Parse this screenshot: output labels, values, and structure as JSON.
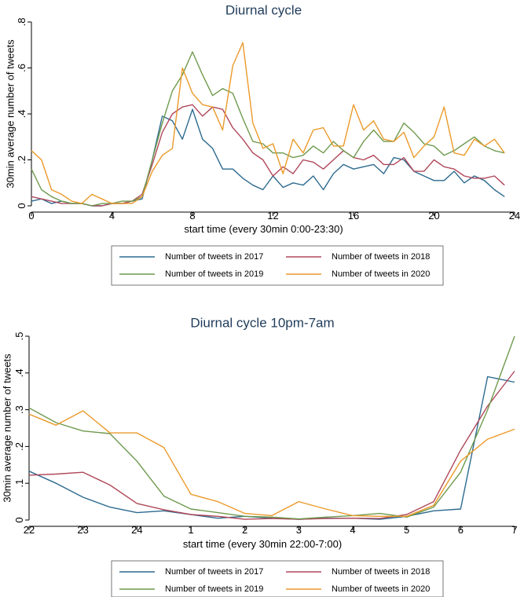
{
  "chart_data": [
    {
      "type": "line",
      "title": "Diurnal cycle",
      "xlabel": "start time (every 30min 0:00-23:30)",
      "ylabel": "30min average number of tweets",
      "xlim": [
        0,
        24
      ],
      "ylim": [
        0,
        0.8
      ],
      "x_ticks": [
        0,
        4,
        8,
        12,
        16,
        20,
        24
      ],
      "x_tick_labels": [
        "0",
        "4",
        "8",
        "12",
        "16",
        "20",
        "24"
      ],
      "y_ticks": [
        0,
        0.2,
        0.4,
        0.6,
        0.8
      ],
      "y_tick_labels": [
        "0",
        ".2",
        ".4",
        ".6",
        ".8"
      ],
      "grid": false,
      "legend_position": "bottom",
      "x": [
        0,
        0.5,
        1,
        1.5,
        2,
        2.5,
        3,
        3.5,
        4,
        4.5,
        5,
        5.5,
        6,
        6.5,
        7,
        7.5,
        8,
        8.5,
        9,
        9.5,
        10,
        10.5,
        11,
        11.5,
        12,
        12.5,
        13,
        13.5,
        14,
        14.5,
        15,
        15.5,
        16,
        16.5,
        17,
        17.5,
        18,
        18.5,
        19,
        19.5,
        20,
        20.5,
        21,
        21.5,
        22,
        22.5,
        23,
        23.5
      ],
      "series": [
        {
          "name": "Number of tweets in 2017",
          "color": "#2d6a8f",
          "values": [
            0.02,
            0.03,
            0.01,
            0.02,
            0.01,
            0.01,
            0.0,
            0.0,
            0.01,
            0.01,
            0.02,
            0.03,
            0.2,
            0.39,
            0.37,
            0.29,
            0.42,
            0.29,
            0.25,
            0.16,
            0.16,
            0.12,
            0.09,
            0.07,
            0.13,
            0.08,
            0.1,
            0.09,
            0.13,
            0.07,
            0.14,
            0.18,
            0.16,
            0.17,
            0.18,
            0.14,
            0.21,
            0.2,
            0.15,
            0.13,
            0.11,
            0.11,
            0.15,
            0.1,
            0.13,
            0.11,
            0.07,
            0.04
          ]
        },
        {
          "name": "Number of tweets in 2018",
          "color": "#b0485a",
          "values": [
            0.04,
            0.03,
            0.02,
            0.01,
            0.01,
            0.01,
            0.0,
            0.0,
            0.01,
            0.01,
            0.02,
            0.05,
            0.18,
            0.32,
            0.4,
            0.43,
            0.44,
            0.39,
            0.43,
            0.42,
            0.34,
            0.29,
            0.23,
            0.2,
            0.13,
            0.17,
            0.14,
            0.2,
            0.19,
            0.16,
            0.2,
            0.24,
            0.21,
            0.2,
            0.22,
            0.18,
            0.18,
            0.21,
            0.15,
            0.15,
            0.2,
            0.17,
            0.16,
            0.13,
            0.12,
            0.12,
            0.13,
            0.09
          ]
        },
        {
          "name": "Number of tweets in 2019",
          "color": "#6f9a4e",
          "values": [
            0.16,
            0.07,
            0.04,
            0.02,
            0.01,
            0.01,
            0.0,
            0.01,
            0.01,
            0.02,
            0.02,
            0.04,
            0.2,
            0.36,
            0.5,
            0.57,
            0.67,
            0.57,
            0.48,
            0.51,
            0.49,
            0.38,
            0.28,
            0.27,
            0.23,
            0.23,
            0.21,
            0.22,
            0.26,
            0.23,
            0.28,
            0.24,
            0.21,
            0.28,
            0.33,
            0.28,
            0.28,
            0.36,
            0.32,
            0.27,
            0.26,
            0.22,
            0.24,
            0.27,
            0.3,
            0.26,
            0.24,
            0.23
          ]
        },
        {
          "name": "Number of tweets in 2020",
          "color": "#eb9a2a",
          "values": [
            0.24,
            0.2,
            0.07,
            0.05,
            0.02,
            0.01,
            0.05,
            0.03,
            0.01,
            0.01,
            0.01,
            0.04,
            0.15,
            0.22,
            0.25,
            0.6,
            0.49,
            0.44,
            0.43,
            0.33,
            0.61,
            0.71,
            0.36,
            0.25,
            0.27,
            0.14,
            0.29,
            0.23,
            0.33,
            0.34,
            0.26,
            0.26,
            0.44,
            0.33,
            0.37,
            0.29,
            0.28,
            0.32,
            0.21,
            0.26,
            0.3,
            0.43,
            0.23,
            0.22,
            0.29,
            0.26,
            0.29,
            0.23
          ]
        }
      ]
    },
    {
      "type": "line",
      "title": "Diurnal cycle 10pm-7am",
      "xlabel": "start time (every 30min 22:00-7:00)",
      "ylabel": "30min average number of tweets",
      "xlim": [
        0,
        9
      ],
      "ylim": [
        0,
        0.5
      ],
      "x_ticks": [
        0,
        1,
        2,
        3,
        4,
        5,
        6,
        7,
        8,
        9
      ],
      "x_tick_labels": [
        "22",
        "23",
        "24",
        "1",
        "2",
        "3",
        "4",
        "5",
        "6",
        "7"
      ],
      "y_ticks": [
        0,
        0.1,
        0.2,
        0.3,
        0.4,
        0.5
      ],
      "y_tick_labels": [
        "0",
        ".1",
        ".2",
        ".3",
        ".4",
        ".5"
      ],
      "grid": false,
      "legend_position": "bottom",
      "x": [
        0,
        0.5,
        1,
        1.5,
        2,
        2.5,
        3,
        3.5,
        4,
        4.5,
        5,
        5.5,
        6,
        6.5,
        7,
        7.5,
        8,
        8.5,
        9
      ],
      "series": [
        {
          "name": "Number of tweets in 2017",
          "color": "#2d6a8f",
          "values": [
            0.133,
            0.1,
            0.062,
            0.035,
            0.02,
            0.025,
            0.015,
            0.005,
            0.01,
            0.005,
            0.002,
            0.005,
            0.005,
            0.002,
            0.01,
            0.025,
            0.03,
            0.39,
            0.375
          ]
        },
        {
          "name": "Number of tweets in 2018",
          "color": "#b0485a",
          "values": [
            0.122,
            0.125,
            0.13,
            0.095,
            0.045,
            0.028,
            0.015,
            0.01,
            0.002,
            0.004,
            0.002,
            0.004,
            0.005,
            0.004,
            0.015,
            0.05,
            0.19,
            0.31,
            0.405
          ]
        },
        {
          "name": "Number of tweets in 2019",
          "color": "#6f9a4e",
          "values": [
            0.305,
            0.265,
            0.242,
            0.235,
            0.16,
            0.065,
            0.03,
            0.02,
            0.01,
            0.008,
            0.003,
            0.008,
            0.012,
            0.018,
            0.008,
            0.035,
            0.13,
            0.3,
            0.5
          ]
        },
        {
          "name": "Number of tweets in 2020",
          "color": "#eb9a2a",
          "values": [
            0.288,
            0.258,
            0.297,
            0.237,
            0.237,
            0.197,
            0.07,
            0.05,
            0.018,
            0.012,
            0.05,
            0.03,
            0.012,
            0.01,
            0.01,
            0.04,
            0.16,
            0.22,
            0.247
          ]
        }
      ]
    }
  ]
}
